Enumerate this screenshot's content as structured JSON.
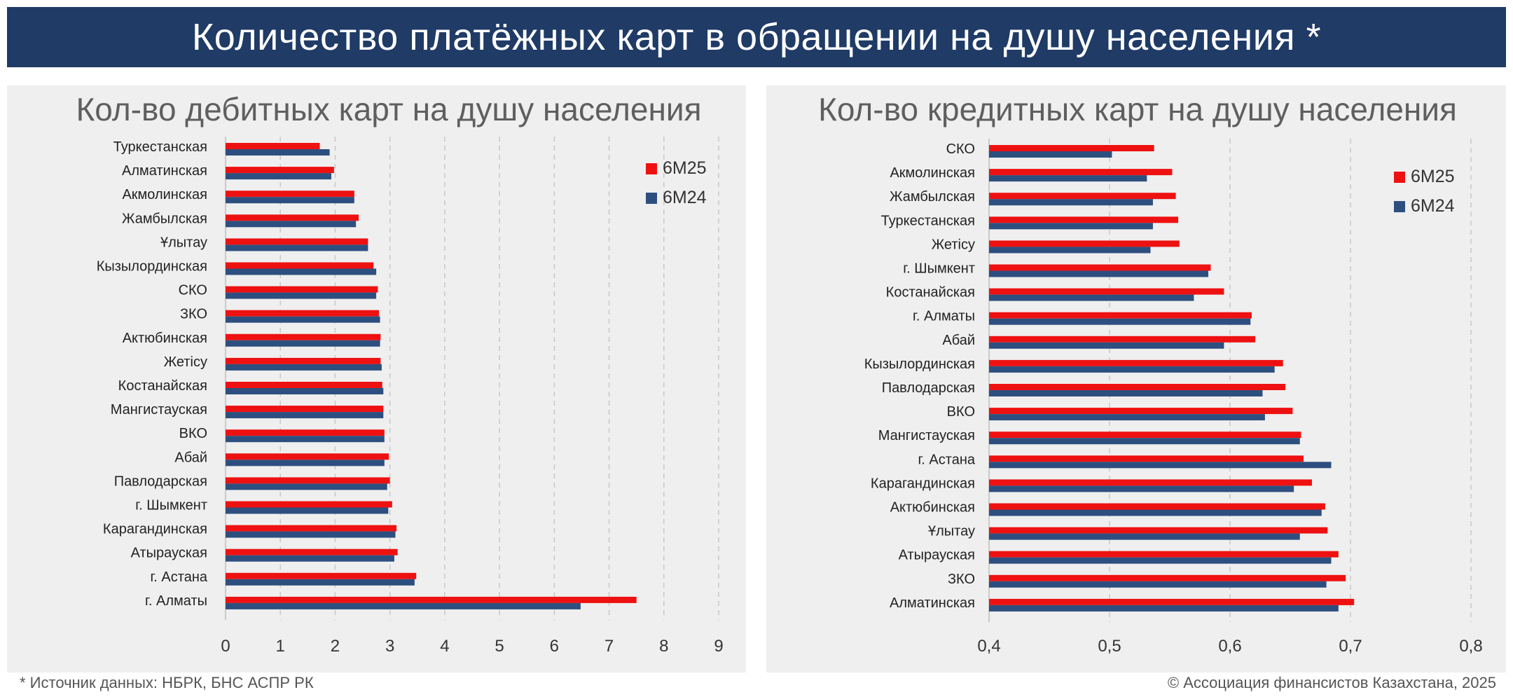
{
  "header": {
    "title": "Количество платёжных карт в обращении на душу населения *"
  },
  "footer": {
    "source": "* Источник данных: НБРК, БНС АСПР РК",
    "copyright": "© Ассоциация финансистов Казахстана, 2025"
  },
  "colors": {
    "6M25": "#ee1111",
    "6M24": "#2d4f7f",
    "banner": "#1f3b66",
    "panel": "#efefef",
    "grid": "#c8c8c8"
  },
  "chart_data": [
    {
      "type": "bar",
      "orientation": "horizontal",
      "title": "Кол-во дебитных карт на душу населения",
      "categories": [
        "Туркестанская",
        "Алматинская",
        "Акмолинская",
        "Жамбылская",
        "Ұлытау",
        "Кызылординская",
        "СКО",
        "ЗКО",
        "Актюбинская",
        "Жетісу",
        "Костанайская",
        "Мангистауская",
        "ВКО",
        "Абай",
        "Павлодарская",
        "г. Шымкент",
        "Карагандинская",
        "Атырауская",
        "г. Астана",
        "г. Алматы"
      ],
      "series": [
        {
          "name": "6М25",
          "values": [
            1.72,
            1.98,
            2.35,
            2.43,
            2.6,
            2.7,
            2.78,
            2.8,
            2.83,
            2.83,
            2.86,
            2.88,
            2.9,
            2.98,
            3.0,
            3.04,
            3.12,
            3.14,
            3.48,
            7.5
          ]
        },
        {
          "name": "6М24",
          "values": [
            1.9,
            1.93,
            2.35,
            2.38,
            2.6,
            2.75,
            2.75,
            2.82,
            2.82,
            2.85,
            2.88,
            2.88,
            2.9,
            2.9,
            2.95,
            2.97,
            3.1,
            3.08,
            3.45,
            6.48
          ]
        }
      ],
      "xlim": [
        0,
        9
      ],
      "ticks": [
        "0",
        "1",
        "2",
        "3",
        "4",
        "5",
        "6",
        "7",
        "8",
        "9"
      ],
      "legend": "top-right",
      "grid": "vertical dashed"
    },
    {
      "type": "bar",
      "orientation": "horizontal",
      "title": "Кол-во кредитных карт на душу населения",
      "categories": [
        "СКО",
        "Акмолинская",
        "Жамбылская",
        "Туркестанская",
        "Жетісу",
        "г. Шымкент",
        "Костанайская",
        "г. Алматы",
        "Абай",
        "Кызылординская",
        "Павлодарская",
        "ВКО",
        "Мангистауская",
        "г. Астана",
        "Карагандинская",
        "Актюбинская",
        "Ұлытау",
        "Атырауская",
        "ЗКО",
        "Алматинская"
      ],
      "series": [
        {
          "name": "6М25",
          "values": [
            0.537,
            0.552,
            0.555,
            0.557,
            0.558,
            0.584,
            0.595,
            0.618,
            0.621,
            0.644,
            0.646,
            0.652,
            0.659,
            0.661,
            0.668,
            0.679,
            0.681,
            0.69,
            0.696,
            0.703
          ]
        },
        {
          "name": "6М24",
          "values": [
            0.502,
            0.531,
            0.536,
            0.536,
            0.534,
            0.582,
            0.57,
            0.617,
            0.595,
            0.637,
            0.627,
            0.629,
            0.658,
            0.684,
            0.653,
            0.676,
            0.658,
            0.684,
            0.68,
            0.69
          ]
        }
      ],
      "xlim": [
        0.4,
        0.8
      ],
      "ticks": [
        "0,4",
        "0,5",
        "0,6",
        "0,7",
        "0,8"
      ],
      "legend": "top-right",
      "grid": "vertical dashed"
    }
  ]
}
